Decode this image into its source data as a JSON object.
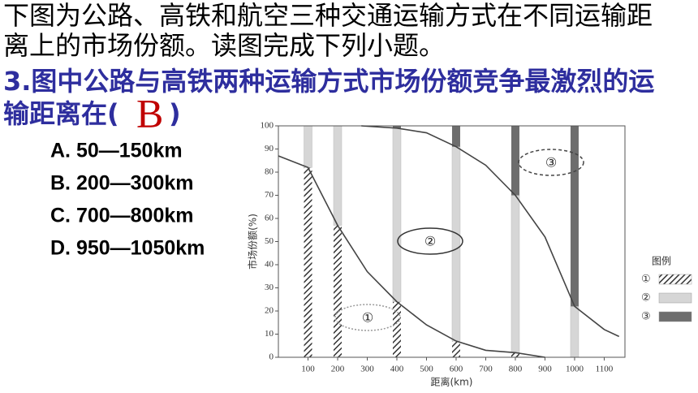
{
  "text": {
    "line1": "下图为公路、高铁和航空三种交通运输方式在不同运输距",
    "line2": "离上的市场份额。读图完成下列小题。",
    "question": "3.图中公路与高铁两种运输方式市场份额竞争最激烈的运",
    "question_cont": "输距离在(",
    "answer": "B",
    "close": ")",
    "options": [
      "A. 50—150km",
      "B. 200—300km",
      "C. 700—800km",
      "D. 950—1050km"
    ]
  },
  "chart_data": {
    "type": "line",
    "xlabel": "距离(km)",
    "ylabel": "市场份额(%)",
    "xlim": [
      0,
      1170
    ],
    "ylim": [
      0,
      100
    ],
    "xticks": [
      100,
      200,
      300,
      400,
      500,
      600,
      700,
      800,
      900,
      1000,
      1100
    ],
    "yticks": [
      0,
      10,
      20,
      30,
      40,
      50,
      60,
      70,
      80,
      90,
      100
    ],
    "lines": [
      {
        "color": "#444",
        "x": [
          0,
          100,
          200,
          300,
          400,
          500,
          600,
          700,
          800,
          900
        ],
        "values": [
          87,
          82,
          57,
          37,
          24,
          14,
          7,
          3,
          2,
          0
        ]
      },
      {
        "color": "#444",
        "x": [
          280,
          400,
          500,
          600,
          700,
          800,
          900,
          1000,
          1100,
          1150
        ],
        "values": [
          100,
          99,
          97,
          91,
          83,
          70,
          52,
          22,
          12,
          9
        ]
      }
    ],
    "bands_x": [
      100,
      200,
      400,
      600,
      800,
      1000
    ],
    "region_labels": [
      "①",
      "②",
      "③"
    ],
    "legend_title": "图例",
    "legend": [
      "①",
      "②",
      "③"
    ]
  }
}
